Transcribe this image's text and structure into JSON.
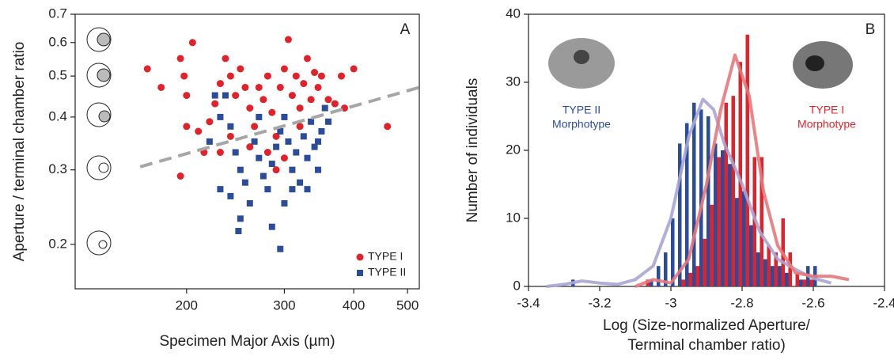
{
  "chart_data": [
    {
      "type": "scatter",
      "panel_label": "A",
      "x_label": "Specimen Major Axis (µm)",
      "y_label": "Aperture / terminal chamber ratio",
      "xscale": "log",
      "yscale": "log",
      "xlim": [
        126,
        525
      ],
      "ylim": [
        0.157,
        0.7
      ],
      "xticks": [
        200,
        300,
        400,
        500
      ],
      "yticks": [
        0.2,
        0.3,
        0.4,
        0.5,
        0.6,
        0.7
      ],
      "legend": "lower right",
      "fit_line": {
        "color": "#a6a6a6",
        "x": [
          165,
          525
        ],
        "y": [
          0.305,
          0.47
        ]
      },
      "series": [
        {
          "name": "TYPE I",
          "color": "#e0232b",
          "marker": "circle",
          "x": [
            170,
            180,
            195,
            198,
            200,
            205,
            200,
            195,
            210,
            215,
            220,
            225,
            230,
            235,
            240,
            245,
            240,
            250,
            255,
            260,
            265,
            270,
            275,
            280,
            285,
            290,
            295,
            300,
            305,
            310,
            315,
            320,
            325,
            330,
            335,
            340,
            345,
            350,
            360,
            370,
            380,
            385,
            400,
            460,
            280,
            300,
            260,
            230,
            320,
            290
          ],
          "values": [
            0.52,
            0.47,
            0.55,
            0.5,
            0.45,
            0.6,
            0.38,
            0.29,
            0.37,
            0.33,
            0.39,
            0.43,
            0.48,
            0.55,
            0.5,
            0.45,
            0.36,
            0.52,
            0.47,
            0.42,
            0.38,
            0.47,
            0.44,
            0.5,
            0.41,
            0.36,
            0.47,
            0.52,
            0.61,
            0.45,
            0.5,
            0.42,
            0.48,
            0.55,
            0.44,
            0.51,
            0.47,
            0.5,
            0.44,
            0.43,
            0.5,
            0.42,
            0.52,
            0.38,
            0.33,
            0.32,
            0.34,
            0.33,
            0.38,
            0.3
          ]
        },
        {
          "name": "TYPE II",
          "color": "#2b4c9b",
          "marker": "square",
          "x": [
            225,
            235,
            230,
            240,
            220,
            245,
            250,
            230,
            240,
            255,
            260,
            250,
            248,
            265,
            270,
            275,
            280,
            285,
            290,
            295,
            295,
            300,
            305,
            310,
            315,
            320,
            325,
            330,
            335,
            340,
            345,
            350,
            355,
            360,
            300,
            285,
            310,
            270,
            330,
            345
          ],
          "values": [
            0.45,
            0.45,
            0.4,
            0.38,
            0.35,
            0.33,
            0.3,
            0.27,
            0.26,
            0.28,
            0.25,
            0.23,
            0.215,
            0.35,
            0.32,
            0.29,
            0.27,
            0.31,
            0.34,
            0.195,
            0.37,
            0.4,
            0.35,
            0.3,
            0.33,
            0.28,
            0.36,
            0.32,
            0.39,
            0.34,
            0.3,
            0.37,
            0.42,
            0.39,
            0.25,
            0.22,
            0.27,
            0.4,
            0.27,
            0.35
          ]
        }
      ]
    },
    {
      "type": "histogram",
      "panel_label": "B",
      "x_label": [
        "Log (Size-normalized Aperture/",
        "Terminal chamber ratio)"
      ],
      "y_label": "Number of individuals",
      "xlim": [
        -3.4,
        -2.4
      ],
      "ylim": [
        0,
        40
      ],
      "xticks": [
        -3.4,
        -3.2,
        -3,
        -2.8,
        -2.6,
        -2.4
      ],
      "yticks": [
        0,
        10,
        20,
        30,
        40
      ],
      "bins": [
        -3.28,
        -3.26,
        -3.24,
        -3.22,
        -3.2,
        -3.18,
        -3.16,
        -3.14,
        -3.12,
        -3.1,
        -3.08,
        -3.06,
        -3.04,
        -3.02,
        -3,
        -2.98,
        -2.96,
        -2.94,
        -2.92,
        -2.9,
        -2.88,
        -2.86,
        -2.84,
        -2.82,
        -2.8,
        -2.78,
        -2.76,
        -2.74,
        -2.72,
        -2.7,
        -2.68,
        -2.66,
        -2.64,
        -2.62,
        -2.6,
        -2.58
      ],
      "series": [
        {
          "color": "#2b4c9b",
          "values": [
            1,
            0,
            0,
            0,
            0,
            0,
            0,
            0,
            0,
            0,
            0,
            1,
            3,
            5,
            10,
            21,
            24,
            27,
            26,
            25,
            21,
            20,
            18,
            13,
            14,
            9,
            5,
            4,
            3,
            3,
            2,
            0,
            1,
            3,
            3
          ]
        },
        {
          "color": "#e0232b",
          "values": [
            0,
            0,
            0,
            0,
            0,
            0,
            0,
            0,
            0,
            0,
            1,
            0,
            0,
            0,
            0,
            1,
            2,
            3,
            7,
            12,
            19,
            27,
            28,
            33,
            37,
            19,
            19,
            6,
            5,
            10,
            5,
            2,
            1,
            1,
            0
          ]
        }
      ],
      "curves": [
        {
          "color": "#a9a6d6",
          "x": [
            -3.35,
            -3.3,
            -3.25,
            -3.2,
            -3.15,
            -3.1,
            -3.05,
            -3,
            -2.95,
            -2.91,
            -2.88,
            -2.85,
            -2.8,
            -2.75,
            -2.7,
            -2.65,
            -2.6,
            -2.55
          ],
          "values": [
            0,
            0.3,
            0.8,
            0.5,
            0.3,
            1,
            3,
            10,
            22,
            27.5,
            26,
            21,
            15,
            8,
            4,
            2.5,
            1.2,
            0.5
          ]
        },
        {
          "color": "#e8787a",
          "x": [
            -3.1,
            -3.05,
            -3,
            -2.95,
            -2.9,
            -2.86,
            -2.82,
            -2.78,
            -2.74,
            -2.7,
            -2.65,
            -2.6,
            -2.55,
            -2.5
          ],
          "values": [
            0,
            1,
            0.5,
            4,
            15,
            26,
            34,
            28,
            14,
            6,
            2,
            1.5,
            1.5,
            1
          ]
        }
      ],
      "annotations": [
        {
          "color": "#2b4c9b",
          "lines": [
            "TYPE II",
            "Morphotype"
          ]
        },
        {
          "color": "#e0232b",
          "lines": [
            "TYPE I",
            "Morphotype"
          ]
        }
      ]
    }
  ]
}
